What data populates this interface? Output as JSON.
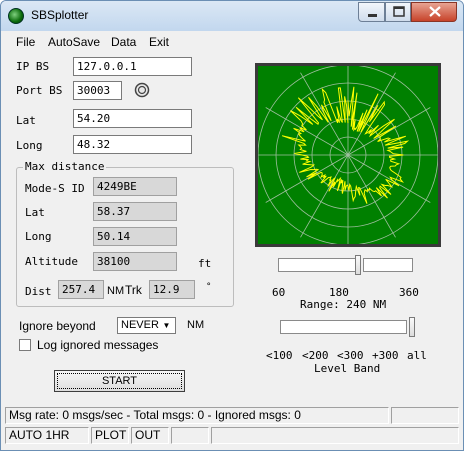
{
  "window": {
    "title": "SBSplotter"
  },
  "menu": {
    "file": "File",
    "autosave": "AutoSave",
    "data": "Data",
    "exit": "Exit"
  },
  "connection": {
    "ip_label": "IP BS",
    "ip_value": "127.0.0.1",
    "port_label": "Port BS",
    "port_value": "30003",
    "lat_label": "Lat",
    "lat_value": "54.20",
    "long_label": "Long",
    "long_value": "48.32"
  },
  "max_distance": {
    "title": "Max distance",
    "modes_label": "Mode-S ID",
    "modes_value": "4249BE",
    "lat_label": "Lat",
    "lat_value": "58.37",
    "long_label": "Long",
    "long_value": "50.14",
    "alt_label": "Altitude",
    "alt_value": "38100",
    "alt_unit": "ft",
    "dist_label": "Dist",
    "dist_value": "257.4",
    "dist_unit": "NM",
    "trk_label": "Trk",
    "trk_value": "12.9",
    "trk_unit": "°"
  },
  "range": {
    "ticks": [
      "60",
      "180",
      "360"
    ],
    "label": "Range: 240 NM"
  },
  "level": {
    "ticks": [
      "<100",
      "<200",
      "<300",
      "+300",
      "all"
    ],
    "label": "Level Band"
  },
  "options": {
    "ignore_label": "Ignore beyond",
    "ignore_value": "NEVER",
    "ignore_unit": "NM",
    "log_label": "Log ignored messages",
    "log_checked": false
  },
  "start_button": "START",
  "status": {
    "line1": "Msg rate: 0 msgs/sec - Total msgs: 0 - Ignored msgs: 0",
    "autosave": "AUTO 1HR",
    "plot": "PLOT",
    "out": "OUT"
  },
  "colors": {
    "radar_bg": "#008000",
    "radar_trace": "#ffff00",
    "radar_grid": "#9fbf9f"
  }
}
